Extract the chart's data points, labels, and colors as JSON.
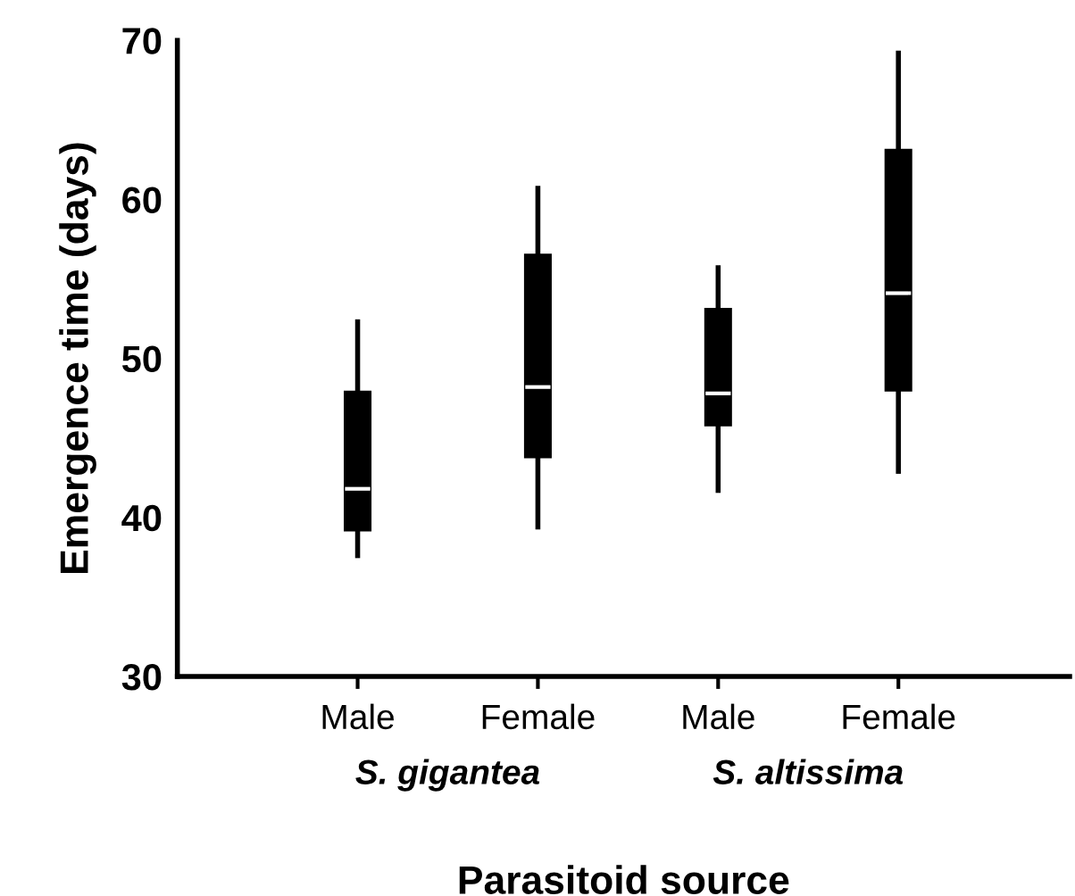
{
  "chart_data": {
    "type": "box",
    "xlabel": "Parasitoid source",
    "ylabel": "Emergence time (days)",
    "categories": [
      "Male",
      "Female",
      "Male",
      "Female"
    ],
    "annotations": [
      "S. gigantea",
      "S. altissima"
    ],
    "color": "#000000",
    "boxes": [
      {
        "low": 37.6,
        "q1": 39.2,
        "median": 41.8,
        "q3": 47.9,
        "high": 52.3
      },
      {
        "low": 39.4,
        "q1": 43.8,
        "median": 48.2,
        "q3": 56.5,
        "high": 60.7
      },
      {
        "low": 41.7,
        "q1": 45.8,
        "median": 47.8,
        "q3": 53.1,
        "high": 55.7
      },
      {
        "low": 42.9,
        "q1": 48.0,
        "median": 54.1,
        "q3": 63.1,
        "high": 69.2
      }
    ],
    "ylim": [
      30,
      70
    ],
    "yticks": [
      30,
      40,
      50,
      60,
      70
    ],
    "grid": false,
    "legend": false
  }
}
